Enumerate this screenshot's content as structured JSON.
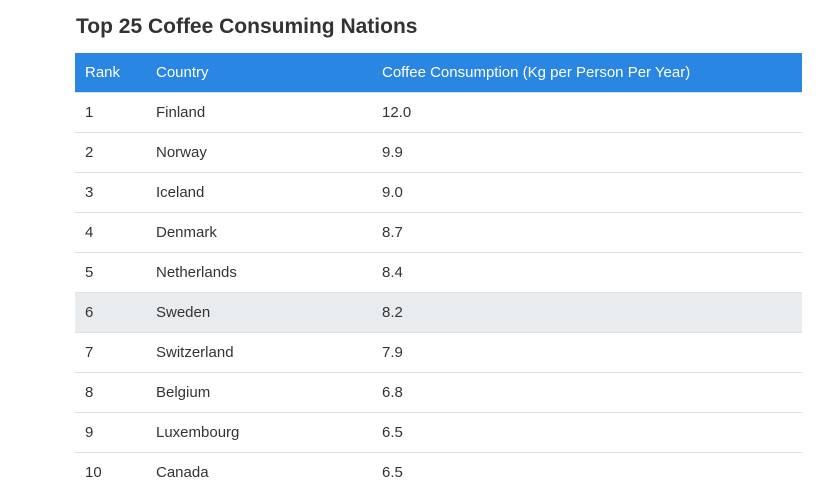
{
  "title": "Top 25 Coffee Consuming Nations",
  "table": {
    "header": [
      "Rank",
      "Country",
      "Coffee Consumption (Kg per Person Per Year)"
    ],
    "rows": [
      [
        "1",
        "Finland",
        "12.0"
      ],
      [
        "2",
        "Norway",
        "9.9"
      ],
      [
        "3",
        "Iceland",
        "9.0"
      ],
      [
        "4",
        "Denmark",
        "8.7"
      ],
      [
        "5",
        "Netherlands",
        "8.4"
      ],
      [
        "6",
        "Sweden",
        "8.2"
      ],
      [
        "7",
        "Switzerland",
        "7.9"
      ],
      [
        "8",
        "Belgium",
        "6.8"
      ],
      [
        "9",
        "Luxembourg",
        "6.5"
      ],
      [
        "10",
        "Canada",
        "6.5"
      ]
    ]
  }
}
